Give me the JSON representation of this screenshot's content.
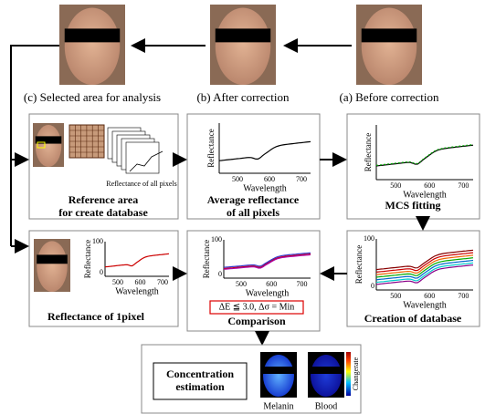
{
  "images": [
    {
      "caption": "(c) Selected area for analysis"
    },
    {
      "caption": "(b) After correction"
    },
    {
      "caption": "(a) Before correction"
    }
  ],
  "panels": {
    "reference": {
      "title": [
        "Reference area",
        "for create database"
      ],
      "note": "Reflectance of all pixels"
    },
    "average": {
      "title": [
        "Average reflectance",
        "of all pixels"
      ],
      "chart": {
        "y_label": "Reflectance",
        "x_label": "Wavelength",
        "xticks": [
          500,
          600,
          700
        ]
      }
    },
    "mcs": {
      "title": [
        "MCS fitting"
      ],
      "chart": {
        "y_label": "Reflectance",
        "x_label": "Wavelength",
        "xticks": [
          500,
          600,
          700
        ]
      }
    },
    "pixel": {
      "title": [
        "Reflectance of 1pixel"
      ],
      "chart": {
        "y_label": "Reflectance",
        "x_label": "Wavelength",
        "yticks": [
          100,
          0
        ],
        "xticks": [
          500,
          600,
          700
        ]
      }
    },
    "comparison": {
      "title": [
        "Comparison"
      ],
      "formula": "ΔE ≦ 3.0, Δσ = Min",
      "chart": {
        "y_label": "Reflectance",
        "x_label": "Wavelength",
        "yticks": [
          100,
          0
        ],
        "xticks": [
          500,
          600,
          700
        ]
      }
    },
    "database": {
      "title": [
        "Creation of database"
      ],
      "chart": {
        "y_label": "Reflectance",
        "x_label": "Wavelength",
        "yticks": [
          100,
          0
        ],
        "xticks": [
          500,
          600,
          700
        ]
      }
    }
  },
  "estimation": {
    "title": [
      "Concentration",
      "estimation"
    ],
    "maps": [
      "Melanin",
      "Blood"
    ],
    "colorbar_label": "Changerate"
  }
}
